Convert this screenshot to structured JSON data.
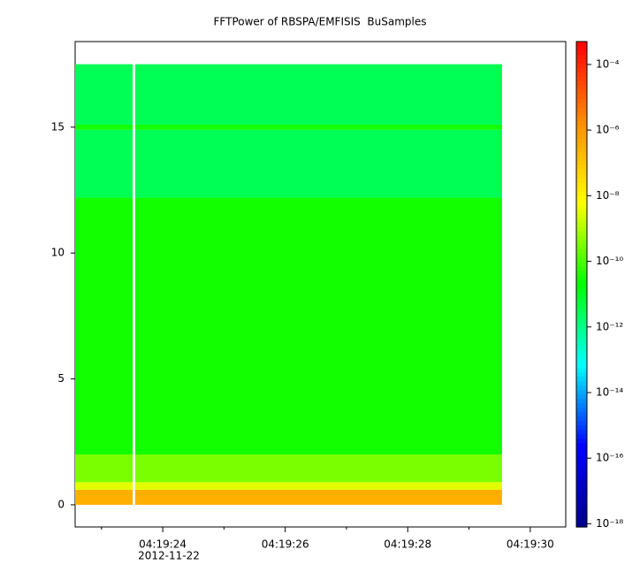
{
  "chart_data": {
    "type": "spectrogram",
    "title": "FFTPower of RBSPA/EMFISIS  BuSamples",
    "x_date_label": "2012-11-22",
    "xlim": [
      22.57,
      30.58
    ],
    "xticks": [
      {
        "value": 24,
        "label": "04:19:24"
      },
      {
        "value": 26,
        "label": "04:19:26"
      },
      {
        "value": 28,
        "label": "04:19:28"
      },
      {
        "value": 30,
        "label": "04:19:30"
      }
    ],
    "xminorticks": [
      23,
      25,
      27,
      29
    ],
    "ylim": [
      -0.88,
      18.4
    ],
    "yticks": [
      0,
      5,
      10,
      15
    ],
    "x_bins": [
      22.57,
      23.51,
      23.55,
      29.54
    ],
    "y_bins": [
      0,
      0.6,
      0.9,
      2,
      12.2,
      14.9,
      15.1,
      17.5
    ],
    "values": [
      [
        3e-07,
        null,
        3e-07
      ],
      [
        3e-09,
        null,
        3e-09
      ],
      [
        3e-10,
        null,
        3e-10
      ],
      [
        3e-11,
        null,
        3e-11
      ],
      [
        3e-12,
        null,
        3e-12
      ],
      [
        3e-11,
        null,
        3e-11
      ],
      [
        3e-12,
        null,
        3e-12
      ]
    ],
    "zlim": [
      8e-19,
      0.0005
    ],
    "zscale": "log",
    "zticks": [
      {
        "value": 0.0001,
        "label": "10⁻⁴"
      },
      {
        "value": 1e-06,
        "label": "10⁻⁶"
      },
      {
        "value": 1e-08,
        "label": "10⁻⁸"
      },
      {
        "value": 1e-10,
        "label": "10⁻¹⁰"
      },
      {
        "value": 1e-12,
        "label": "10⁻¹²"
      },
      {
        "value": 1e-14,
        "label": "10⁻¹⁴"
      },
      {
        "value": 1e-16,
        "label": "10⁻¹⁶"
      },
      {
        "value": 1e-18,
        "label": "10⁻¹⁸"
      }
    ],
    "colormap": [
      "#00008b",
      "#0000ff",
      "#00ffff",
      "#00ff00",
      "#ffff00",
      "#ff8c00",
      "#ff0000"
    ]
  }
}
